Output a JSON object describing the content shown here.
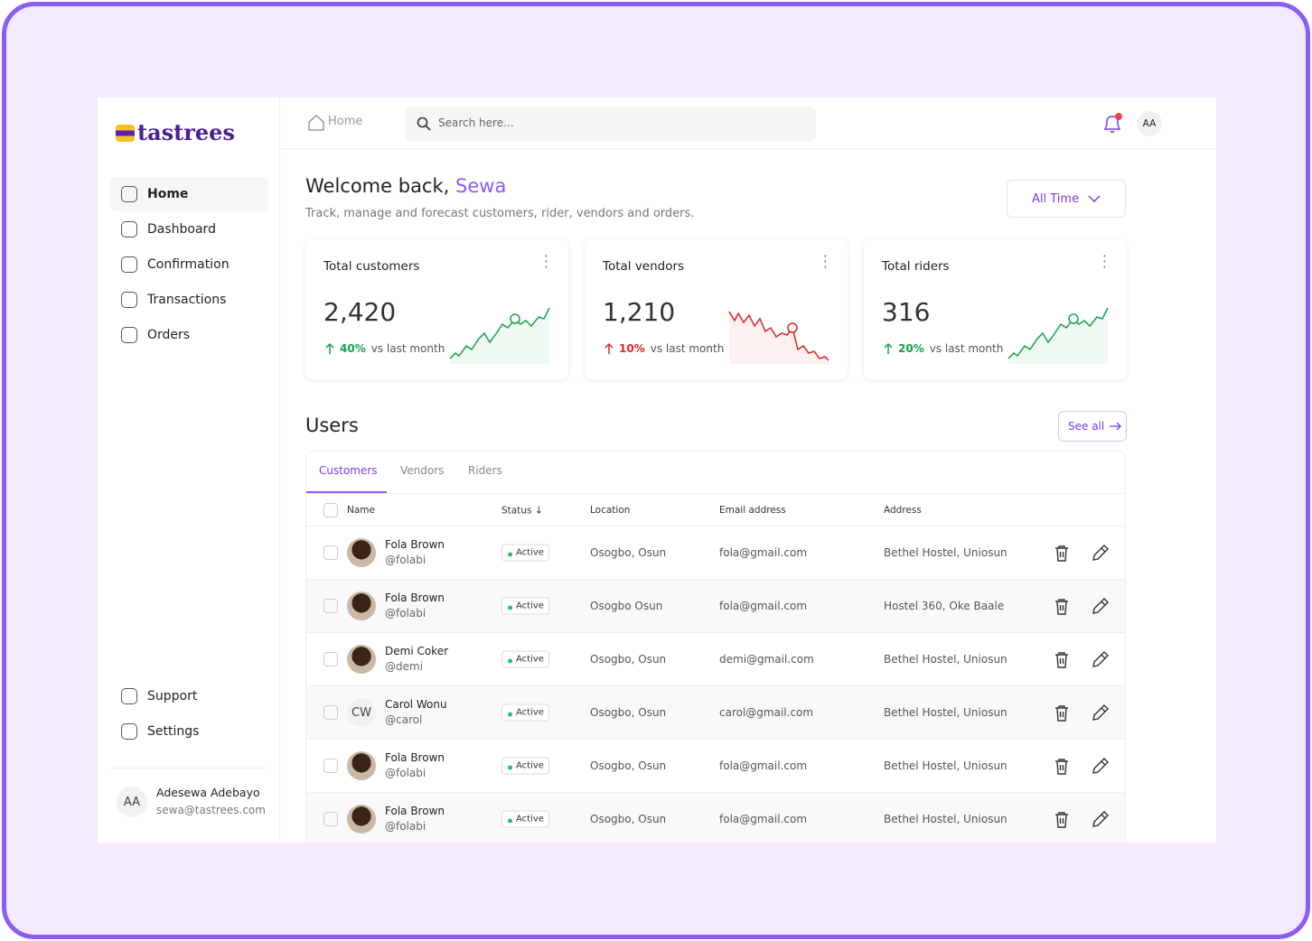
{
  "brand": "tastrees",
  "nav": [
    "Home",
    "Dashboard",
    "Confirmation",
    "Transactions",
    "Orders"
  ],
  "nav_bottom": [
    "Support",
    "Settings"
  ],
  "user": {
    "initials": "AA",
    "name": "Adesewa Adebayo",
    "email": "sewa@tastrees.com"
  },
  "topbar": {
    "breadcrumb": "Home",
    "search_placeholder": "Search here...",
    "avatar": "AA"
  },
  "welcome": {
    "greeting": "Welcome back,",
    "name": "Sewa",
    "subtitle": "Track, manage and forecast customers, rider, vendors and orders.",
    "filter": "All Time"
  },
  "stats": [
    {
      "title": "Total customers",
      "value": "2,420",
      "change": "40%",
      "note": "vs last month",
      "color": "#16a34a"
    },
    {
      "title": "Total vendors",
      "value": "1,210",
      "change": "10%",
      "note": "vs last month",
      "color": "#dc2626"
    },
    {
      "title": "Total riders",
      "value": "316",
      "change": "20%",
      "note": "vs last month",
      "color": "#16a34a"
    }
  ],
  "users": {
    "title": "Users",
    "see_all": "See all",
    "tabs": [
      "Customers",
      "Vendors",
      "Riders"
    ],
    "columns": [
      "Name",
      "Status",
      "Location",
      "Email address",
      "Address"
    ],
    "rows": [
      {
        "name": "Fola Brown",
        "handle": "@folabi",
        "status": "Active",
        "location": "Osogbo, Osun",
        "email": "fola@gmail.com",
        "address": "Bethel Hostel, Uniosun"
      },
      {
        "name": "Fola Brown",
        "handle": "@folabi",
        "status": "Active",
        "location": "Osogbo Osun",
        "email": "fola@gmail.com",
        "address": "Hostel 360, Oke Baale"
      },
      {
        "name": "Demi Coker",
        "handle": "@demi",
        "status": "Active",
        "location": "Osogbo, Osun",
        "email": "demi@gmail.com",
        "address": "Bethel Hostel, Uniosun"
      },
      {
        "name": "Carol Wonu",
        "handle": "@carol",
        "initials": "CW",
        "status": "Active",
        "location": "Osogbo, Osun",
        "email": "carol@gmail.com",
        "address": "Bethel Hostel, Uniosun"
      },
      {
        "name": "Fola Brown",
        "handle": "@folabi",
        "status": "Active",
        "location": "Osogbo, Osun",
        "email": "fola@gmail.com",
        "address": "Bethel Hostel, Uniosun"
      },
      {
        "name": "Fola Brown",
        "handle": "@folabi",
        "status": "Active",
        "location": "Osogbo, Osun",
        "email": "fola@gmail.com",
        "address": "Bethel Hostel, Uniosun"
      }
    ]
  }
}
